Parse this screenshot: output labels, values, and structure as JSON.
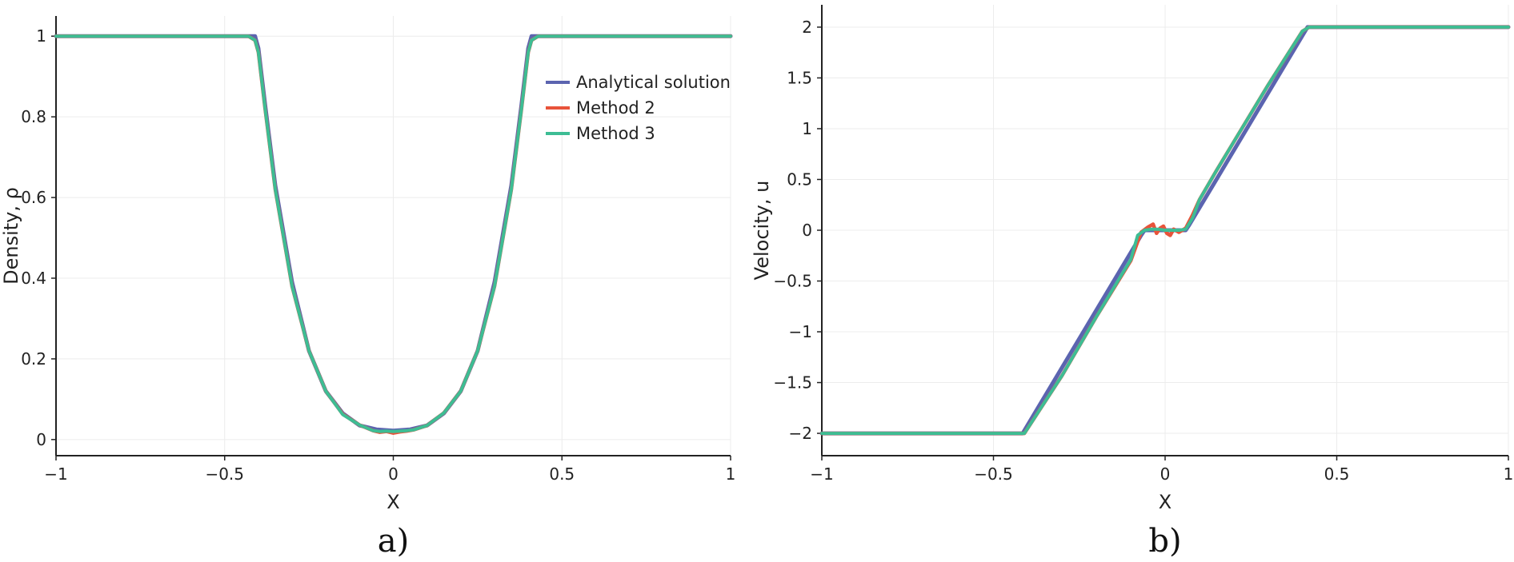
{
  "chart_data": [
    {
      "type": "line",
      "panel_label": "a)",
      "xlabel": "X",
      "ylabel": "Density, ρ",
      "xlim": [
        -1,
        1
      ],
      "ylim": [
        -0.04,
        1.05
      ],
      "xticks": [
        -1,
        -0.5,
        0,
        0.5,
        1
      ],
      "xtick_labels": [
        "−1",
        "−0.5",
        "0",
        "0.5",
        "1"
      ],
      "yticks": [
        0,
        0.2,
        0.4,
        0.6,
        0.8,
        1
      ],
      "ytick_labels": [
        "0",
        "0.2",
        "0.4",
        "0.6",
        "0.8",
        "1"
      ],
      "grid": true,
      "legend_position": "top-right",
      "series": [
        {
          "name": "Analytical solution",
          "color": "#5b64b0",
          "x": [
            -1,
            -0.42,
            -0.41,
            -0.4,
            -0.38,
            -0.35,
            -0.3,
            -0.25,
            -0.2,
            -0.15,
            -0.1,
            -0.05,
            0,
            0.05,
            0.1,
            0.15,
            0.2,
            0.25,
            0.3,
            0.35,
            0.38,
            0.4,
            0.41,
            0.42,
            1
          ],
          "y": [
            1,
            1,
            1,
            0.97,
            0.83,
            0.63,
            0.39,
            0.22,
            0.12,
            0.065,
            0.035,
            0.025,
            0.022,
            0.025,
            0.035,
            0.065,
            0.12,
            0.22,
            0.39,
            0.63,
            0.83,
            0.97,
            1,
            1,
            1
          ]
        },
        {
          "name": "Method 2",
          "color": "#e8533a",
          "x": [
            -1,
            -0.43,
            -0.41,
            -0.4,
            -0.38,
            -0.35,
            -0.3,
            -0.25,
            -0.2,
            -0.15,
            -0.1,
            -0.06,
            -0.04,
            -0.02,
            0,
            0.02,
            0.04,
            0.06,
            0.1,
            0.15,
            0.2,
            0.25,
            0.3,
            0.35,
            0.38,
            0.4,
            0.41,
            0.43,
            1
          ],
          "y": [
            1,
            1,
            0.99,
            0.96,
            0.82,
            0.62,
            0.38,
            0.22,
            0.12,
            0.063,
            0.036,
            0.022,
            0.018,
            0.02,
            0.016,
            0.019,
            0.021,
            0.024,
            0.035,
            0.066,
            0.12,
            0.22,
            0.38,
            0.62,
            0.82,
            0.96,
            0.99,
            1,
            1
          ]
        },
        {
          "name": "Method 3",
          "color": "#3dbd94",
          "x": [
            -1,
            -0.43,
            -0.41,
            -0.4,
            -0.38,
            -0.35,
            -0.3,
            -0.25,
            -0.2,
            -0.15,
            -0.1,
            -0.06,
            -0.04,
            -0.02,
            0,
            0.02,
            0.04,
            0.06,
            0.1,
            0.15,
            0.2,
            0.25,
            0.3,
            0.35,
            0.38,
            0.4,
            0.41,
            0.43,
            1
          ],
          "y": [
            1,
            1,
            0.99,
            0.96,
            0.82,
            0.62,
            0.38,
            0.22,
            0.12,
            0.062,
            0.036,
            0.022,
            0.02,
            0.021,
            0.02,
            0.021,
            0.022,
            0.024,
            0.035,
            0.066,
            0.12,
            0.22,
            0.38,
            0.62,
            0.82,
            0.96,
            0.99,
            1,
            1
          ]
        }
      ]
    },
    {
      "type": "line",
      "panel_label": "b)",
      "xlabel": "X",
      "ylabel": "Velocity, u",
      "xlim": [
        -1,
        1
      ],
      "ylim": [
        -2.22,
        2.22
      ],
      "xticks": [
        -1,
        -0.5,
        0,
        0.5,
        1
      ],
      "xtick_labels": [
        "−1",
        "−0.5",
        "0",
        "0.5",
        "1"
      ],
      "yticks": [
        -2,
        -1.5,
        -1,
        -0.5,
        0,
        0.5,
        1,
        1.5,
        2
      ],
      "ytick_labels": [
        "−2",
        "−1.5",
        "−1",
        "−0.5",
        "0",
        "0.5",
        "1",
        "1.5",
        "2"
      ],
      "grid": true,
      "series": [
        {
          "name": "Analytical solution",
          "color": "#5b64b0",
          "x": [
            -1,
            -0.415,
            -0.07,
            -0.06,
            0.06,
            0.07,
            0.415,
            1
          ],
          "y": [
            -2,
            -2,
            -0.05,
            0,
            0,
            0.05,
            2,
            2
          ]
        },
        {
          "name": "Method 2",
          "color": "#e8533a",
          "x": [
            -1,
            -0.41,
            -0.3,
            -0.2,
            -0.1,
            -0.07,
            -0.05,
            -0.035,
            -0.025,
            -0.015,
            -0.005,
            0.005,
            0.015,
            0.025,
            0.04,
            0.06,
            0.08,
            0.1,
            0.15,
            0.2,
            0.3,
            0.4,
            0.42,
            1
          ],
          "y": [
            -2,
            -2,
            -1.43,
            -0.85,
            -0.3,
            -0.02,
            0.03,
            0.06,
            -0.03,
            0.02,
            0.04,
            -0.03,
            -0.05,
            0.01,
            -0.02,
            0.02,
            0.15,
            0.3,
            0.59,
            0.87,
            1.43,
            1.96,
            2,
            2
          ]
        },
        {
          "name": "Method 3",
          "color": "#3dbd94",
          "x": [
            -1,
            -0.41,
            -0.3,
            -0.2,
            -0.1,
            -0.08,
            -0.06,
            -0.04,
            -0.02,
            0,
            0.02,
            0.04,
            0.06,
            0.08,
            0.1,
            0.15,
            0.2,
            0.3,
            0.4,
            0.42,
            1
          ],
          "y": [
            -2,
            -2,
            -1.43,
            -0.85,
            -0.29,
            -0.05,
            0,
            0.01,
            0.01,
            0.0,
            0.0,
            0.0,
            0.01,
            0.12,
            0.3,
            0.59,
            0.87,
            1.43,
            1.96,
            2,
            2
          ]
        }
      ]
    }
  ]
}
